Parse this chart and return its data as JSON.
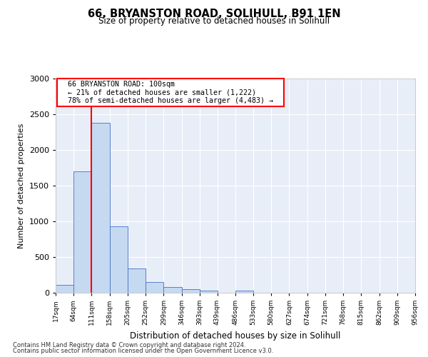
{
  "title1": "66, BRYANSTON ROAD, SOLIHULL, B91 1EN",
  "title2": "Size of property relative to detached houses in Solihull",
  "xlabel": "Distribution of detached houses by size in Solihull",
  "ylabel": "Number of detached properties",
  "footnote1": "Contains HM Land Registry data © Crown copyright and database right 2024.",
  "footnote2": "Contains public sector information licensed under the Open Government Licence v3.0.",
  "annotation_line1": "66 BRYANSTON ROAD: 100sqm",
  "annotation_line2": "← 21% of detached houses are smaller (1,222)",
  "annotation_line3": "78% of semi-detached houses are larger (4,483) →",
  "bar_edges": [
    17,
    64,
    111,
    158,
    205,
    252,
    299,
    346,
    393,
    439,
    486,
    533,
    580,
    627,
    674,
    721,
    768,
    815,
    862,
    909,
    956
  ],
  "bar_heights": [
    115,
    1700,
    2380,
    935,
    345,
    155,
    80,
    55,
    30,
    5,
    30,
    5,
    5,
    5,
    5,
    0,
    0,
    0,
    0,
    0
  ],
  "bar_color": "#c5d9f1",
  "bar_edgecolor": "#4472c4",
  "red_line_x": 111,
  "ylim": [
    0,
    3000
  ],
  "yticks": [
    0,
    500,
    1000,
    1500,
    2000,
    2500,
    3000
  ],
  "background_color": "#ffffff",
  "plot_bg_color": "#e8eef8"
}
